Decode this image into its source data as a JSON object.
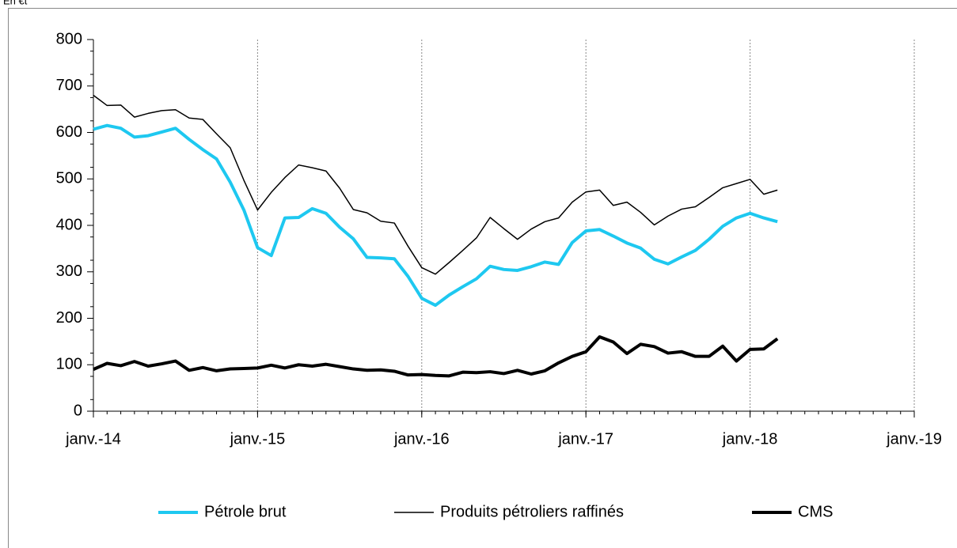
{
  "chart_data": {
    "type": "line",
    "title": "En €t",
    "x": [
      "2014-01",
      "2014-02",
      "2014-03",
      "2014-04",
      "2014-05",
      "2014-06",
      "2014-07",
      "2014-08",
      "2014-09",
      "2014-10",
      "2014-11",
      "2014-12",
      "2015-01",
      "2015-02",
      "2015-03",
      "2015-04",
      "2015-05",
      "2015-06",
      "2015-07",
      "2015-08",
      "2015-09",
      "2015-10",
      "2015-11",
      "2015-12",
      "2016-01",
      "2016-02",
      "2016-03",
      "2016-04",
      "2016-05",
      "2016-06",
      "2016-07",
      "2016-08",
      "2016-09",
      "2016-10",
      "2016-11",
      "2016-12",
      "2017-01",
      "2017-02",
      "2017-03",
      "2017-04",
      "2017-05",
      "2017-06",
      "2017-07",
      "2017-08",
      "2017-09",
      "2017-10",
      "2017-11",
      "2017-12",
      "2018-01",
      "2018-02",
      "2018-03"
    ],
    "series": [
      {
        "name": "Pétrole brut",
        "color": "#1ec8f0",
        "width": 4,
        "values": [
          607,
          615,
          609,
          590,
          593,
          601,
          609,
          585,
          563,
          543,
          493,
          433,
          352,
          335,
          416,
          417,
          436,
          426,
          396,
          371,
          331,
          330,
          328,
          290,
          243,
          228,
          250,
          268,
          285,
          312,
          305,
          303,
          311,
          321,
          316,
          363,
          388,
          391,
          377,
          362,
          351,
          327,
          317,
          332,
          346,
          370,
          398,
          416,
          426,
          416,
          408
        ]
      },
      {
        "name": "Produits pétroliers raffinés",
        "color": "#000000",
        "width": 1.5,
        "values": [
          680,
          658,
          659,
          633,
          641,
          647,
          649,
          631,
          628,
          597,
          567,
          497,
          433,
          471,
          503,
          530,
          524,
          517,
          480,
          434,
          427,
          409,
          405,
          355,
          309,
          295,
          320,
          346,
          373,
          417,
          393,
          370,
          392,
          408,
          416,
          450,
          472,
          476,
          443,
          450,
          428,
          401,
          420,
          435,
          440,
          460,
          481,
          490,
          499,
          467,
          476
        ]
      },
      {
        "name": "CMS",
        "color": "#000000",
        "width": 4,
        "values": [
          90,
          103,
          98,
          107,
          97,
          102,
          108,
          88,
          94,
          87,
          91,
          92,
          93,
          99,
          93,
          100,
          97,
          101,
          96,
          91,
          88,
          89,
          86,
          78,
          79,
          77,
          76,
          84,
          83,
          85,
          81,
          88,
          80,
          87,
          104,
          118,
          128,
          160,
          149,
          124,
          144,
          139,
          125,
          128,
          118,
          118,
          140,
          108,
          133,
          134,
          156
        ]
      }
    ],
    "xlim": [
      "2014-01",
      "2019-01"
    ],
    "xticks": [
      {
        "value": "2014-01",
        "label": "janv.-14"
      },
      {
        "value": "2015-01",
        "label": "janv.-15"
      },
      {
        "value": "2016-01",
        "label": "janv.-16"
      },
      {
        "value": "2017-01",
        "label": "janv.-17"
      },
      {
        "value": "2018-01",
        "label": "janv.-18"
      },
      {
        "value": "2019-01",
        "label": "janv.-19"
      }
    ],
    "ylim": [
      0,
      800
    ],
    "yticks": [
      0,
      100,
      200,
      300,
      400,
      500,
      600,
      700,
      800
    ],
    "grid": "x"
  }
}
